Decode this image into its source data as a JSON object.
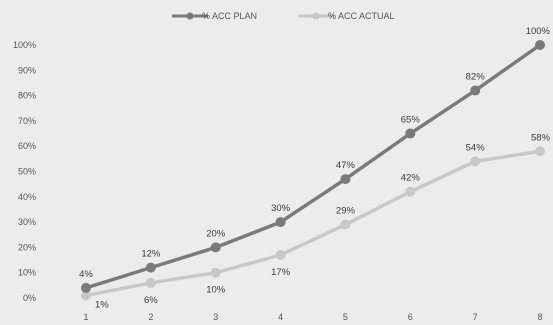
{
  "chart_data": {
    "type": "line",
    "title": "",
    "xlabel": "",
    "ylabel": "",
    "x": [
      1,
      2,
      3,
      4,
      5,
      6,
      7,
      8
    ],
    "ylim": [
      0,
      100
    ],
    "y_ticks": [
      "0%",
      "10%",
      "20%",
      "30%",
      "40%",
      "50%",
      "60%",
      "70%",
      "80%",
      "90%",
      "100%"
    ],
    "grid": false,
    "legend_position": "top",
    "series": [
      {
        "name": "% ACC PLAN",
        "color": "#7a7a7a",
        "values": [
          4,
          12,
          20,
          30,
          47,
          65,
          82,
          100
        ],
        "labels": [
          "4%",
          "12%",
          "20%",
          "30%",
          "47%",
          "65%",
          "82%",
          "100%"
        ],
        "label_pos": [
          "above",
          "above",
          "above",
          "above",
          "above",
          "above",
          "above",
          "above"
        ]
      },
      {
        "name": "% ACC ACTUAL",
        "color": "#c8c8c8",
        "values": [
          1,
          6,
          10,
          17,
          29,
          42,
          54,
          58
        ],
        "labels": [
          "1%",
          "6%",
          "10%",
          "17%",
          "29%",
          "42%",
          "54%",
          "58%"
        ],
        "label_pos": [
          "right",
          "below",
          "below",
          "below",
          "above",
          "above",
          "above",
          "above"
        ]
      }
    ]
  }
}
